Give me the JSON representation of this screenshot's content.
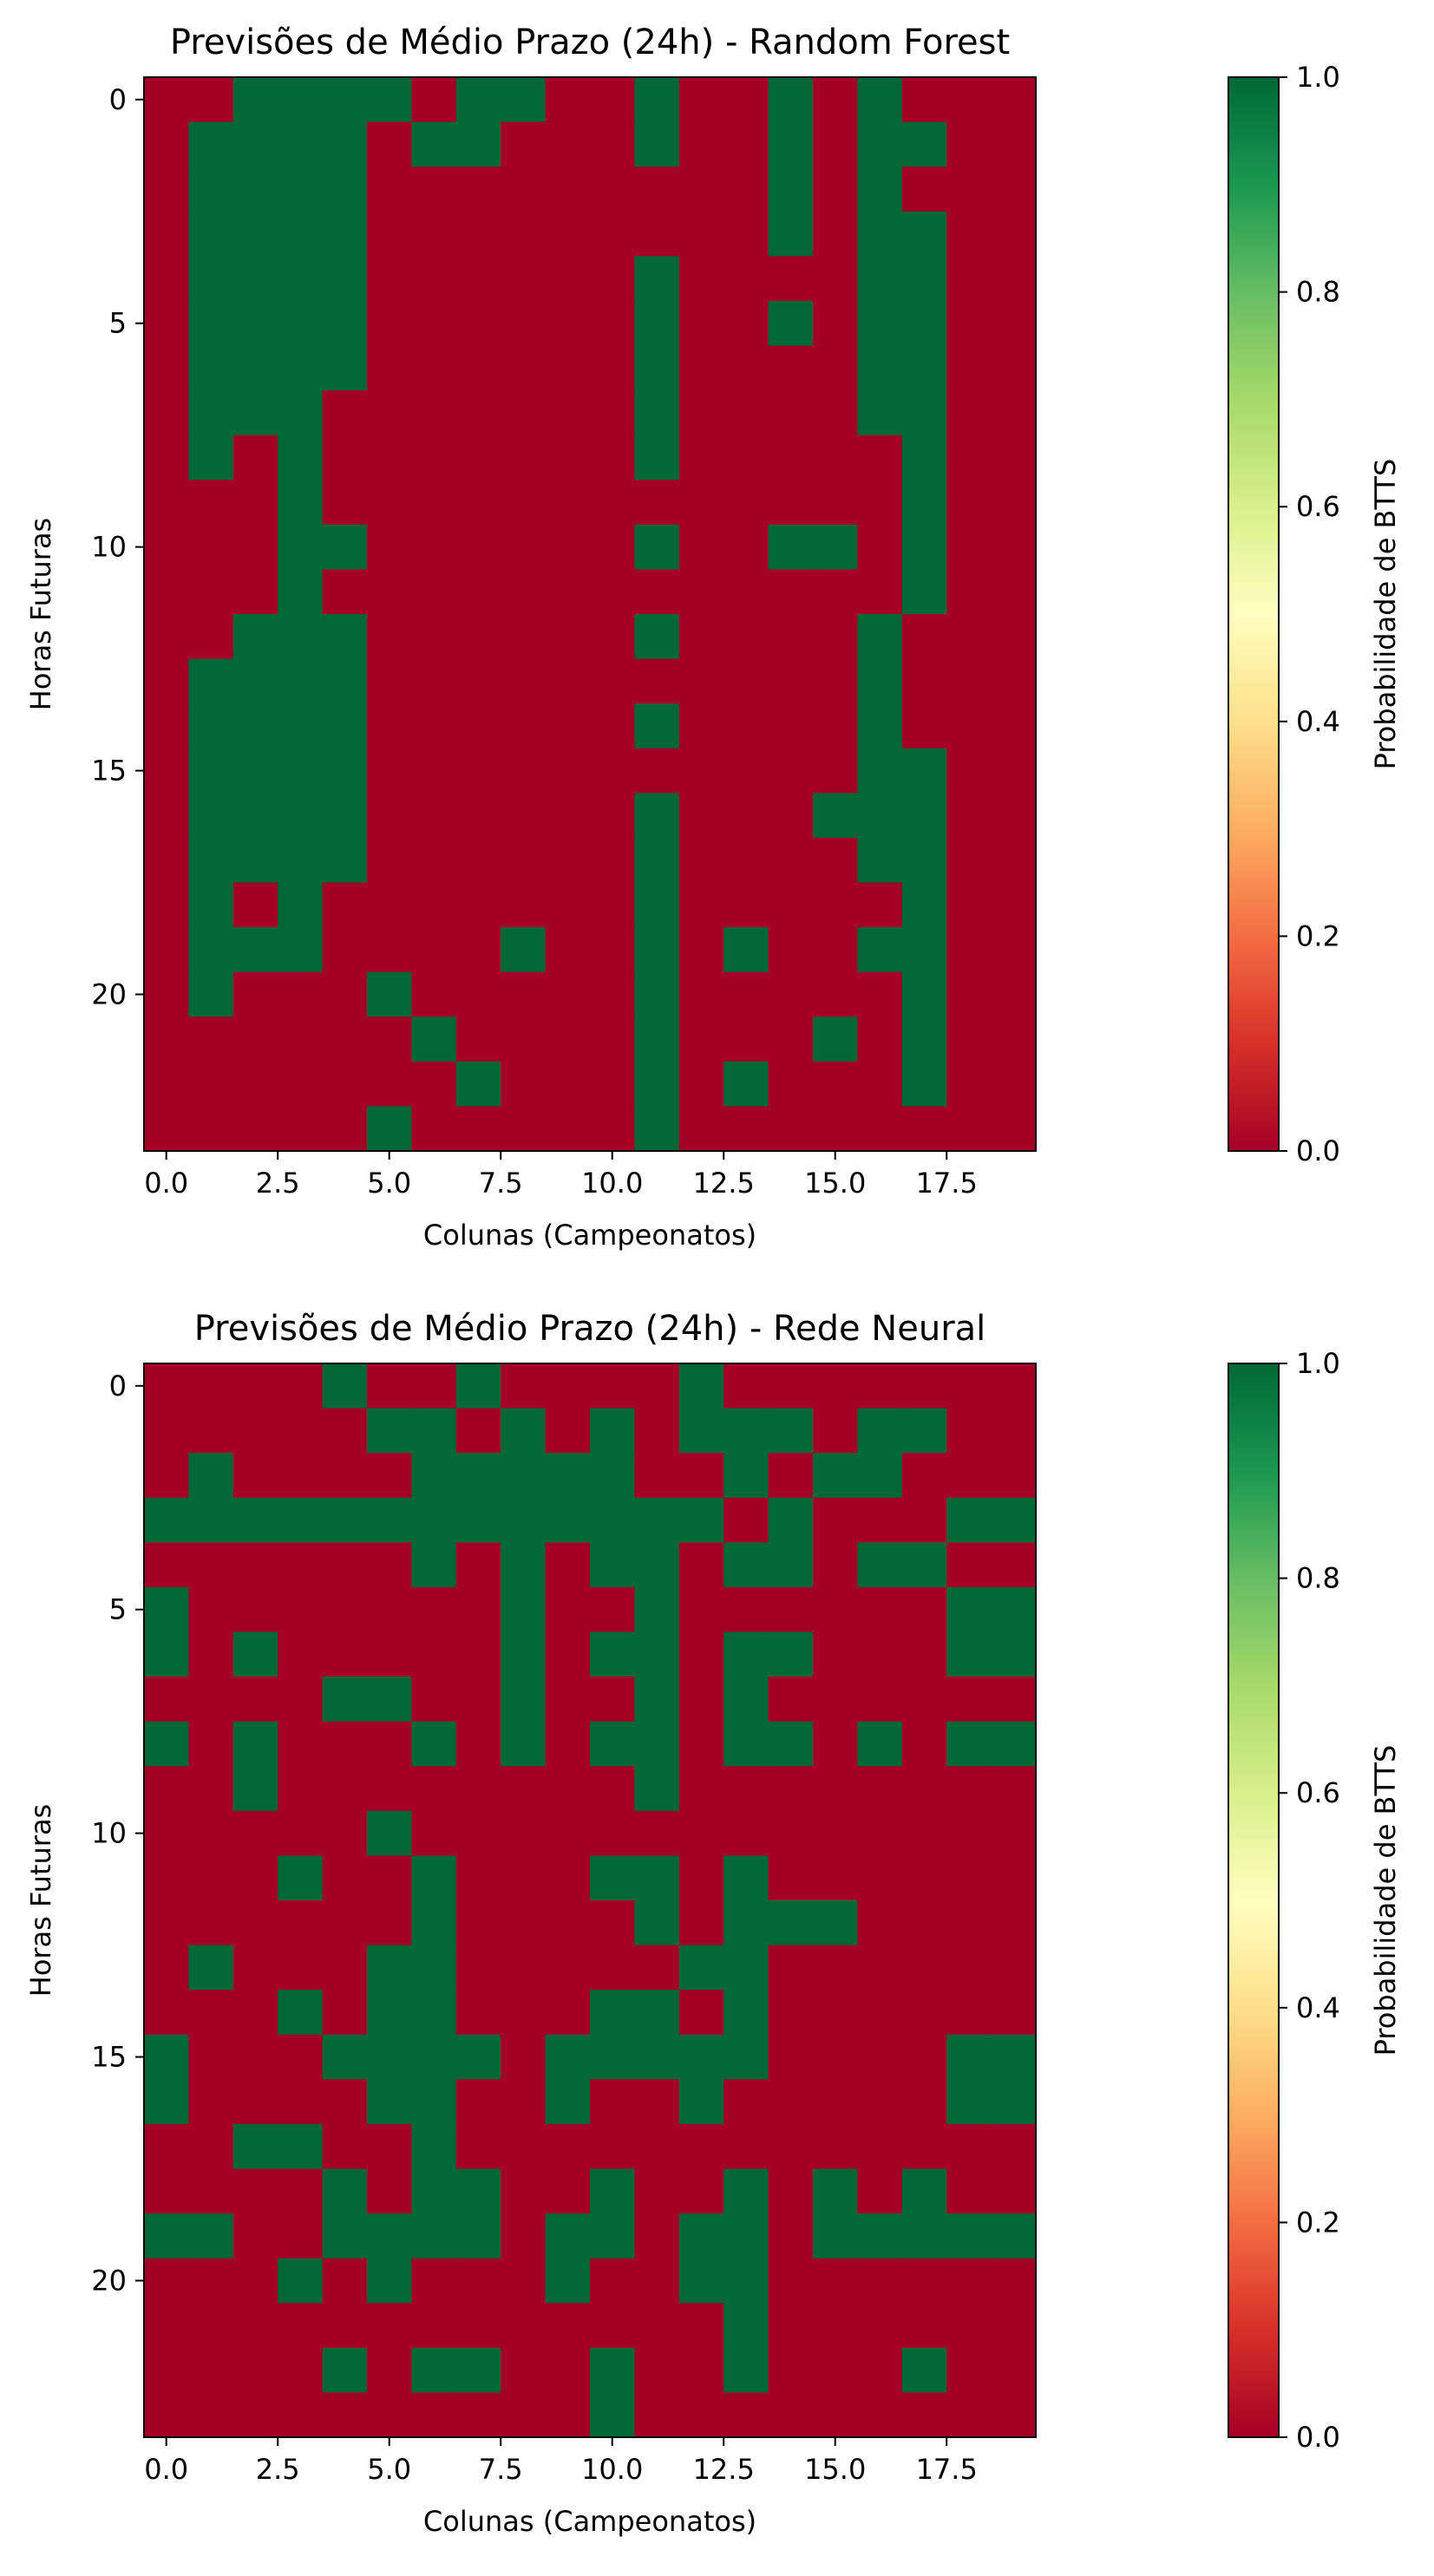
{
  "chart_data": [
    {
      "type": "heatmap",
      "title": "Previsões de Médio Prazo (24h) - Random Forest",
      "xlabel": "Colunas (Campeonatos)",
      "ylabel": "Horas Futuras",
      "xlim": [
        -0.5,
        19.5
      ],
      "ylim": [
        23.5,
        -0.5
      ],
      "x_ticks": [
        "0.0",
        "2.5",
        "5.0",
        "7.5",
        "10.0",
        "12.5",
        "15.0",
        "17.5"
      ],
      "x_tick_values": [
        0,
        2.5,
        5,
        7.5,
        10,
        12.5,
        15,
        17.5
      ],
      "y_ticks": [
        "0",
        "5",
        "10",
        "15",
        "20"
      ],
      "y_tick_values": [
        0,
        5,
        10,
        15,
        20
      ],
      "colorbar": {
        "label": "Probabilidade de BTTS",
        "ticks": [
          "0.0",
          "0.2",
          "0.4",
          "0.6",
          "0.8",
          "1.0"
        ],
        "tick_values": [
          0,
          0.2,
          0.4,
          0.6,
          0.8,
          1.0
        ],
        "vmin": 0,
        "vmax": 1,
        "colormap": "RdYlGn"
      },
      "grid": false,
      "values": [
        [
          0,
          0,
          1,
          1,
          1,
          1,
          0,
          1,
          1,
          0,
          0,
          1,
          0,
          0,
          1,
          0,
          1,
          0,
          0,
          0
        ],
        [
          0,
          1,
          1,
          1,
          1,
          0,
          1,
          1,
          0,
          0,
          0,
          1,
          0,
          0,
          1,
          0,
          1,
          1,
          0,
          0
        ],
        [
          0,
          1,
          1,
          1,
          1,
          0,
          0,
          0,
          0,
          0,
          0,
          0,
          0,
          0,
          1,
          0,
          1,
          0,
          0,
          0
        ],
        [
          0,
          1,
          1,
          1,
          1,
          0,
          0,
          0,
          0,
          0,
          0,
          0,
          0,
          0,
          1,
          0,
          1,
          1,
          0,
          0
        ],
        [
          0,
          1,
          1,
          1,
          1,
          0,
          0,
          0,
          0,
          0,
          0,
          1,
          0,
          0,
          0,
          0,
          1,
          1,
          0,
          0
        ],
        [
          0,
          1,
          1,
          1,
          1,
          0,
          0,
          0,
          0,
          0,
          0,
          1,
          0,
          0,
          1,
          0,
          1,
          1,
          0,
          0
        ],
        [
          0,
          1,
          1,
          1,
          1,
          0,
          0,
          0,
          0,
          0,
          0,
          1,
          0,
          0,
          0,
          0,
          1,
          1,
          0,
          0
        ],
        [
          0,
          1,
          1,
          1,
          0,
          0,
          0,
          0,
          0,
          0,
          0,
          1,
          0,
          0,
          0,
          0,
          1,
          1,
          0,
          0
        ],
        [
          0,
          1,
          0,
          1,
          0,
          0,
          0,
          0,
          0,
          0,
          0,
          1,
          0,
          0,
          0,
          0,
          0,
          1,
          0,
          0
        ],
        [
          0,
          0,
          0,
          1,
          0,
          0,
          0,
          0,
          0,
          0,
          0,
          0,
          0,
          0,
          0,
          0,
          0,
          1,
          0,
          0
        ],
        [
          0,
          0,
          0,
          1,
          1,
          0,
          0,
          0,
          0,
          0,
          0,
          1,
          0,
          0,
          1,
          1,
          0,
          1,
          0,
          0
        ],
        [
          0,
          0,
          0,
          1,
          0,
          0,
          0,
          0,
          0,
          0,
          0,
          0,
          0,
          0,
          0,
          0,
          0,
          1,
          0,
          0
        ],
        [
          0,
          0,
          1,
          1,
          1,
          0,
          0,
          0,
          0,
          0,
          0,
          1,
          0,
          0,
          0,
          0,
          1,
          0,
          0,
          0
        ],
        [
          0,
          1,
          1,
          1,
          1,
          0,
          0,
          0,
          0,
          0,
          0,
          0,
          0,
          0,
          0,
          0,
          1,
          0,
          0,
          0
        ],
        [
          0,
          1,
          1,
          1,
          1,
          0,
          0,
          0,
          0,
          0,
          0,
          1,
          0,
          0,
          0,
          0,
          1,
          0,
          0,
          0
        ],
        [
          0,
          1,
          1,
          1,
          1,
          0,
          0,
          0,
          0,
          0,
          0,
          0,
          0,
          0,
          0,
          0,
          1,
          1,
          0,
          0
        ],
        [
          0,
          1,
          1,
          1,
          1,
          0,
          0,
          0,
          0,
          0,
          0,
          1,
          0,
          0,
          0,
          1,
          1,
          1,
          0,
          0
        ],
        [
          0,
          1,
          1,
          1,
          1,
          0,
          0,
          0,
          0,
          0,
          0,
          1,
          0,
          0,
          0,
          0,
          1,
          1,
          0,
          0
        ],
        [
          0,
          1,
          0,
          1,
          0,
          0,
          0,
          0,
          0,
          0,
          0,
          1,
          0,
          0,
          0,
          0,
          0,
          1,
          0,
          0
        ],
        [
          0,
          1,
          1,
          1,
          0,
          0,
          0,
          0,
          1,
          0,
          0,
          1,
          0,
          1,
          0,
          0,
          1,
          1,
          0,
          0
        ],
        [
          0,
          1,
          0,
          0,
          0,
          1,
          0,
          0,
          0,
          0,
          0,
          1,
          0,
          0,
          0,
          0,
          0,
          1,
          0,
          0
        ],
        [
          0,
          0,
          0,
          0,
          0,
          0,
          1,
          0,
          0,
          0,
          0,
          1,
          0,
          0,
          0,
          1,
          0,
          1,
          0,
          0
        ],
        [
          0,
          0,
          0,
          0,
          0,
          0,
          0,
          1,
          0,
          0,
          0,
          1,
          0,
          1,
          0,
          0,
          0,
          1,
          0,
          0
        ],
        [
          0,
          0,
          0,
          0,
          0,
          1,
          0,
          0,
          0,
          0,
          0,
          1,
          0,
          0,
          0,
          0,
          0,
          0,
          0,
          0
        ]
      ]
    },
    {
      "type": "heatmap",
      "title": "Previsões de Médio Prazo (24h) - Rede Neural",
      "xlabel": "Colunas (Campeonatos)",
      "ylabel": "Horas Futuras",
      "xlim": [
        -0.5,
        19.5
      ],
      "ylim": [
        23.5,
        -0.5
      ],
      "x_ticks": [
        "0.0",
        "2.5",
        "5.0",
        "7.5",
        "10.0",
        "12.5",
        "15.0",
        "17.5"
      ],
      "x_tick_values": [
        0,
        2.5,
        5,
        7.5,
        10,
        12.5,
        15,
        17.5
      ],
      "y_ticks": [
        "0",
        "5",
        "10",
        "15",
        "20"
      ],
      "y_tick_values": [
        0,
        5,
        10,
        15,
        20
      ],
      "colorbar": {
        "label": "Probabilidade de BTTS",
        "ticks": [
          "0.0",
          "0.2",
          "0.4",
          "0.6",
          "0.8",
          "1.0"
        ],
        "tick_values": [
          0,
          0.2,
          0.4,
          0.6,
          0.8,
          1.0
        ],
        "vmin": 0,
        "vmax": 1,
        "colormap": "RdYlGn"
      },
      "grid": false,
      "values": [
        [
          0,
          0,
          0,
          0,
          1,
          0,
          0,
          1,
          0,
          0,
          0,
          0,
          1,
          0,
          0,
          0,
          0,
          0,
          0,
          0
        ],
        [
          0,
          0,
          0,
          0,
          0,
          1,
          1,
          0,
          1,
          0,
          1,
          0,
          1,
          1,
          1,
          0,
          1,
          1,
          0,
          0
        ],
        [
          0,
          1,
          0,
          0,
          0,
          0,
          1,
          1,
          1,
          1,
          1,
          0,
          0,
          1,
          0,
          1,
          1,
          0,
          0,
          0
        ],
        [
          1,
          1,
          1,
          1,
          1,
          1,
          1,
          1,
          1,
          1,
          1,
          1,
          1,
          0,
          1,
          0,
          0,
          0,
          1,
          1
        ],
        [
          0,
          0,
          0,
          0,
          0,
          0,
          1,
          0,
          1,
          0,
          1,
          1,
          0,
          1,
          1,
          0,
          1,
          1,
          0,
          0
        ],
        [
          1,
          0,
          0,
          0,
          0,
          0,
          0,
          0,
          1,
          0,
          0,
          1,
          0,
          0,
          0,
          0,
          0,
          0,
          1,
          1
        ],
        [
          1,
          0,
          1,
          0,
          0,
          0,
          0,
          0,
          1,
          0,
          1,
          1,
          0,
          1,
          1,
          0,
          0,
          0,
          1,
          1
        ],
        [
          0,
          0,
          0,
          0,
          1,
          1,
          0,
          0,
          1,
          0,
          0,
          1,
          0,
          1,
          0,
          0,
          0,
          0,
          0,
          0
        ],
        [
          1,
          0,
          1,
          0,
          0,
          0,
          1,
          0,
          1,
          0,
          1,
          1,
          0,
          1,
          1,
          0,
          1,
          0,
          1,
          1
        ],
        [
          0,
          0,
          1,
          0,
          0,
          0,
          0,
          0,
          0,
          0,
          0,
          1,
          0,
          0,
          0,
          0,
          0,
          0,
          0,
          0
        ],
        [
          0,
          0,
          0,
          0,
          0,
          1,
          0,
          0,
          0,
          0,
          0,
          0,
          0,
          0,
          0,
          0,
          0,
          0,
          0,
          0
        ],
        [
          0,
          0,
          0,
          1,
          0,
          0,
          1,
          0,
          0,
          0,
          1,
          1,
          0,
          1,
          0,
          0,
          0,
          0,
          0,
          0
        ],
        [
          0,
          0,
          0,
          0,
          0,
          0,
          1,
          0,
          0,
          0,
          0,
          1,
          0,
          1,
          1,
          1,
          0,
          0,
          0,
          0
        ],
        [
          0,
          1,
          0,
          0,
          0,
          1,
          1,
          0,
          0,
          0,
          0,
          0,
          1,
          1,
          0,
          0,
          0,
          0,
          0,
          0
        ],
        [
          0,
          0,
          0,
          1,
          0,
          1,
          1,
          0,
          0,
          0,
          1,
          1,
          0,
          1,
          0,
          0,
          0,
          0,
          0,
          0
        ],
        [
          1,
          0,
          0,
          0,
          1,
          1,
          1,
          1,
          0,
          1,
          1,
          1,
          1,
          1,
          0,
          0,
          0,
          0,
          1,
          1
        ],
        [
          1,
          0,
          0,
          0,
          0,
          1,
          1,
          0,
          0,
          1,
          0,
          0,
          1,
          0,
          0,
          0,
          0,
          0,
          1,
          1
        ],
        [
          0,
          0,
          1,
          1,
          0,
          0,
          1,
          0,
          0,
          0,
          0,
          0,
          0,
          0,
          0,
          0,
          0,
          0,
          0,
          0
        ],
        [
          0,
          0,
          0,
          0,
          1,
          0,
          1,
          1,
          0,
          0,
          1,
          0,
          0,
          1,
          0,
          1,
          0,
          1,
          0,
          0
        ],
        [
          1,
          1,
          0,
          0,
          1,
          1,
          1,
          1,
          0,
          1,
          1,
          0,
          1,
          1,
          0,
          1,
          1,
          1,
          1,
          1
        ],
        [
          0,
          0,
          0,
          1,
          0,
          1,
          0,
          0,
          0,
          1,
          0,
          0,
          1,
          1,
          0,
          0,
          0,
          0,
          0,
          0
        ],
        [
          0,
          0,
          0,
          0,
          0,
          0,
          0,
          0,
          0,
          0,
          0,
          0,
          0,
          1,
          0,
          0,
          0,
          0,
          0,
          0
        ],
        [
          0,
          0,
          0,
          0,
          1,
          0,
          1,
          1,
          0,
          0,
          1,
          0,
          0,
          1,
          0,
          0,
          0,
          1,
          0,
          0
        ],
        [
          0,
          0,
          0,
          0,
          0,
          0,
          0,
          0,
          0,
          0,
          1,
          0,
          0,
          0,
          0,
          0,
          0,
          0,
          0,
          0
        ]
      ]
    }
  ]
}
